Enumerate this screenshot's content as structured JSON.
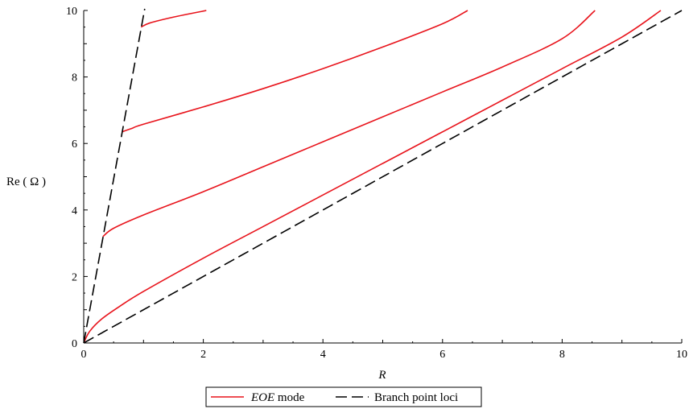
{
  "chart_data": {
    "type": "line",
    "xlabel": "R",
    "ylabel": "Re ( Ω )",
    "xlim": [
      0,
      10
    ],
    "ylim": [
      0,
      10
    ],
    "x_ticks": [
      "0",
      "2",
      "4",
      "6",
      "8",
      "10"
    ],
    "y_ticks": [
      "0",
      "2",
      "4",
      "6",
      "8",
      "10"
    ],
    "grid": false,
    "legend_position": "bottom-center",
    "colors": {
      "eoe": "#e8141c",
      "branch": "#000000"
    },
    "legend": [
      {
        "italic": "EOE",
        "text": " mode",
        "style": "solid",
        "color": "#e8141c"
      },
      {
        "text": "Branch point loci",
        "style": "dashed",
        "color": "#000000"
      }
    ],
    "series": [
      {
        "group": "EOE mode",
        "style": "solid",
        "color": "#e8141c",
        "points": [
          [
            0,
            0
          ],
          [
            0.1,
            0.35
          ],
          [
            0.3,
            0.72
          ],
          [
            0.6,
            1.1
          ],
          [
            1,
            1.55
          ],
          [
            2,
            2.55
          ],
          [
            3,
            3.5
          ],
          [
            4,
            4.45
          ],
          [
            5,
            5.4
          ],
          [
            6,
            6.35
          ],
          [
            7,
            7.3
          ],
          [
            8,
            8.25
          ],
          [
            9,
            9.2
          ],
          [
            9.65,
            10
          ]
        ]
      },
      {
        "group": "EOE mode",
        "style": "solid",
        "color": "#e8141c",
        "points": [
          [
            0.32,
            3.2
          ],
          [
            0.5,
            3.45
          ],
          [
            1,
            3.85
          ],
          [
            2,
            4.55
          ],
          [
            3,
            5.3
          ],
          [
            4,
            6.05
          ],
          [
            5,
            6.8
          ],
          [
            6,
            7.55
          ],
          [
            7,
            8.3
          ],
          [
            8,
            9.15
          ],
          [
            8.55,
            10
          ]
        ]
      },
      {
        "group": "EOE mode",
        "style": "solid",
        "color": "#e8141c",
        "points": [
          [
            0.64,
            6.35
          ],
          [
            0.8,
            6.45
          ],
          [
            1,
            6.58
          ],
          [
            2,
            7.1
          ],
          [
            3,
            7.65
          ],
          [
            4,
            8.25
          ],
          [
            5,
            8.9
          ],
          [
            6,
            9.6
          ],
          [
            6.42,
            10
          ]
        ]
      },
      {
        "group": "EOE mode",
        "style": "solid",
        "color": "#e8141c",
        "points": [
          [
            0.96,
            9.5
          ],
          [
            1.1,
            9.62
          ],
          [
            1.5,
            9.8
          ],
          [
            2.05,
            10
          ]
        ]
      },
      {
        "group": "Branch point loci",
        "style": "dashed",
        "color": "#000000",
        "points": [
          [
            0,
            0
          ],
          [
            1.02,
            10.05
          ]
        ]
      },
      {
        "group": "Branch point loci",
        "style": "dashed",
        "color": "#000000",
        "points": [
          [
            0,
            0
          ],
          [
            10,
            10
          ]
        ]
      }
    ]
  }
}
